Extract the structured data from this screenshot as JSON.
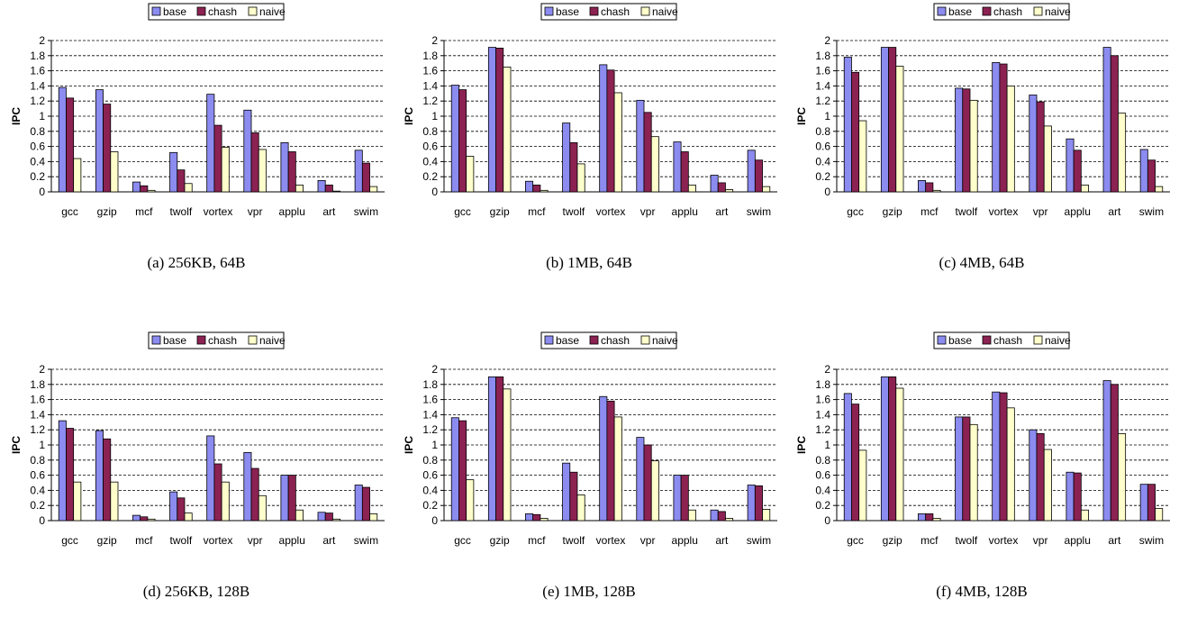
{
  "colors": {
    "base": "#8B8BF0",
    "chash": "#8B2252",
    "naive": "#FFFFCC"
  },
  "chart_data": [
    {
      "type": "bar",
      "caption": "(a) 256KB, 64B",
      "ylabel": "IPC",
      "ylim": [
        0,
        2
      ],
      "yticks": [
        "0",
        "0.2",
        "0.4",
        "0.6",
        "0.8",
        "1",
        "1.2",
        "1.4",
        "1.6",
        "1.8",
        "2"
      ],
      "categories": [
        "gcc",
        "gzip",
        "mcf",
        "twolf",
        "vortex",
        "vpr",
        "applu",
        "art",
        "swim"
      ],
      "legend_position": "top-center",
      "grid": "dashed-horizontal",
      "series": [
        {
          "name": "base",
          "values": [
            1.38,
            1.35,
            0.13,
            0.52,
            1.29,
            1.08,
            0.65,
            0.15,
            0.55
          ]
        },
        {
          "name": "chash",
          "values": [
            1.24,
            1.16,
            0.08,
            0.29,
            0.88,
            0.78,
            0.53,
            0.09,
            0.38
          ]
        },
        {
          "name": "naive",
          "values": [
            0.44,
            0.53,
            0.02,
            0.11,
            0.59,
            0.56,
            0.09,
            0.01,
            0.07
          ]
        }
      ]
    },
    {
      "type": "bar",
      "caption": "(b) 1MB, 64B",
      "ylabel": "IPC",
      "ylim": [
        0,
        2
      ],
      "yticks": [
        "0",
        "0.2",
        "0.4",
        "0.6",
        "0.8",
        "1",
        "1.2",
        "1.4",
        "1.6",
        "1.8",
        "2"
      ],
      "categories": [
        "gcc",
        "gzip",
        "mcf",
        "twolf",
        "vortex",
        "vpr",
        "applu",
        "art",
        "swim"
      ],
      "legend_position": "top-center",
      "grid": "dashed-horizontal",
      "series": [
        {
          "name": "base",
          "values": [
            1.41,
            1.91,
            0.14,
            0.91,
            1.68,
            1.21,
            0.66,
            0.22,
            0.55
          ]
        },
        {
          "name": "chash",
          "values": [
            1.35,
            1.9,
            0.09,
            0.65,
            1.61,
            1.05,
            0.53,
            0.12,
            0.42
          ]
        },
        {
          "name": "naive",
          "values": [
            0.47,
            1.65,
            0.02,
            0.37,
            1.31,
            0.73,
            0.09,
            0.03,
            0.07
          ]
        }
      ]
    },
    {
      "type": "bar",
      "caption": "(c) 4MB, 64B",
      "ylabel": "IPC",
      "ylim": [
        0,
        2
      ],
      "yticks": [
        "0",
        "0.2",
        "0.4",
        "0.6",
        "0.8",
        "1",
        "1.2",
        "1.4",
        "1.6",
        "1.8",
        "2"
      ],
      "categories": [
        "gcc",
        "gzip",
        "mcf",
        "twolf",
        "vortex",
        "vpr",
        "applu",
        "art",
        "swim"
      ],
      "legend_position": "top-center",
      "grid": "dashed-horizontal",
      "series": [
        {
          "name": "base",
          "values": [
            1.78,
            1.91,
            0.15,
            1.37,
            1.71,
            1.28,
            0.7,
            1.91,
            0.56
          ]
        },
        {
          "name": "chash",
          "values": [
            1.58,
            1.91,
            0.12,
            1.36,
            1.69,
            1.19,
            0.55,
            1.8,
            0.42
          ]
        },
        {
          "name": "naive",
          "values": [
            0.94,
            1.66,
            0.02,
            1.21,
            1.4,
            0.87,
            0.09,
            1.04,
            0.07
          ]
        }
      ]
    },
    {
      "type": "bar",
      "caption": "(d) 256KB, 128B",
      "ylabel": "IPC",
      "ylim": [
        0,
        2
      ],
      "yticks": [
        "0",
        "0.2",
        "0.4",
        "0.6",
        "0.8",
        "1",
        "1.2",
        "1.4",
        "1.6",
        "1.8",
        "2"
      ],
      "categories": [
        "gcc",
        "gzip",
        "mcf",
        "twolf",
        "vortex",
        "vpr",
        "applu",
        "art",
        "swim"
      ],
      "legend_position": "top-center",
      "grid": "dashed-horizontal",
      "series": [
        {
          "name": "base",
          "values": [
            1.32,
            1.19,
            0.07,
            0.38,
            1.12,
            0.9,
            0.6,
            0.11,
            0.47
          ]
        },
        {
          "name": "chash",
          "values": [
            1.22,
            1.08,
            0.05,
            0.3,
            0.75,
            0.69,
            0.6,
            0.1,
            0.44
          ]
        },
        {
          "name": "naive",
          "values": [
            0.51,
            0.51,
            0.02,
            0.1,
            0.51,
            0.33,
            0.14,
            0.02,
            0.09
          ]
        }
      ]
    },
    {
      "type": "bar",
      "caption": "(e) 1MB, 128B",
      "ylabel": "IPC",
      "ylim": [
        0,
        2
      ],
      "yticks": [
        "0",
        "0.2",
        "0.4",
        "0.6",
        "0.8",
        "1",
        "1.2",
        "1.4",
        "1.6",
        "1.8",
        "2"
      ],
      "categories": [
        "gcc",
        "gzip",
        "mcf",
        "twolf",
        "vortex",
        "vpr",
        "applu",
        "art",
        "swim"
      ],
      "legend_position": "top-center",
      "grid": "dashed-horizontal",
      "series": [
        {
          "name": "base",
          "values": [
            1.36,
            1.9,
            0.09,
            0.76,
            1.64,
            1.1,
            0.6,
            0.14,
            0.47
          ]
        },
        {
          "name": "chash",
          "values": [
            1.32,
            1.9,
            0.08,
            0.64,
            1.58,
            1.0,
            0.6,
            0.12,
            0.46
          ]
        },
        {
          "name": "naive",
          "values": [
            0.54,
            1.74,
            0.03,
            0.34,
            1.37,
            0.79,
            0.14,
            0.03,
            0.15
          ]
        }
      ]
    },
    {
      "type": "bar",
      "caption": "(f) 4MB, 128B",
      "ylabel": "IPC",
      "ylim": [
        0,
        2
      ],
      "yticks": [
        "0",
        "0.2",
        "0.4",
        "0.6",
        "0.8",
        "1",
        "1.2",
        "1.4",
        "1.6",
        "1.8",
        "2"
      ],
      "categories": [
        "gcc",
        "gzip",
        "mcf",
        "twolf",
        "vortex",
        "vpr",
        "applu",
        "art",
        "swim"
      ],
      "legend_position": "top-center",
      "grid": "dashed-horizontal",
      "series": [
        {
          "name": "base",
          "values": [
            1.68,
            1.9,
            0.09,
            1.37,
            1.7,
            1.2,
            0.64,
            1.85,
            0.48
          ]
        },
        {
          "name": "chash",
          "values": [
            1.54,
            1.9,
            0.09,
            1.37,
            1.69,
            1.15,
            0.63,
            1.8,
            0.48
          ]
        },
        {
          "name": "naive",
          "values": [
            0.93,
            1.75,
            0.03,
            1.27,
            1.49,
            0.94,
            0.14,
            1.15,
            0.16
          ]
        }
      ]
    }
  ]
}
